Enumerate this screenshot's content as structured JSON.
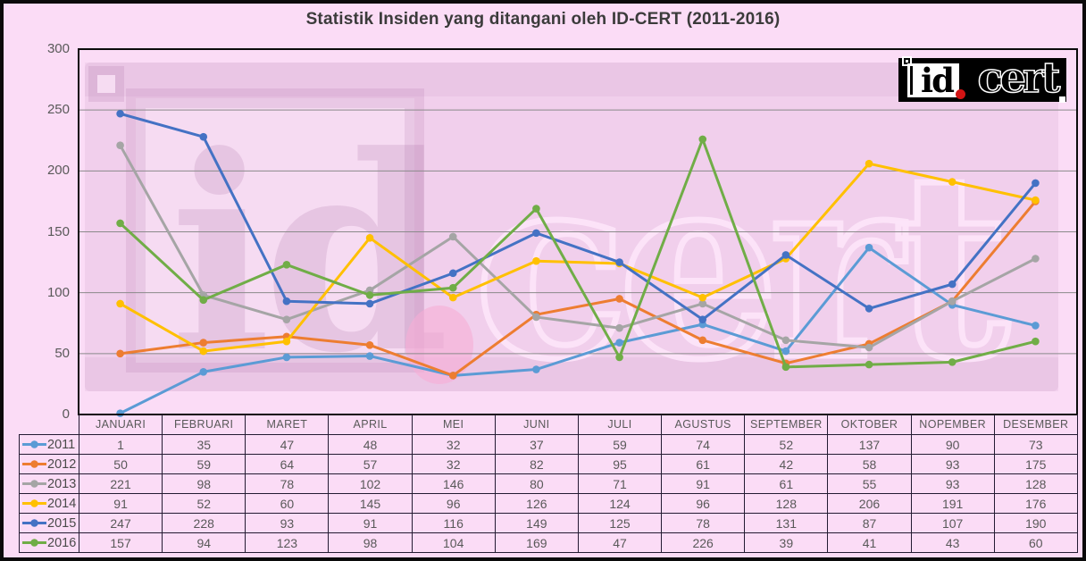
{
  "title": "Statistik Insiden yang ditangani oleh ID-CERT (2011-2016)",
  "logo": {
    "id_text": "id",
    "cert_text": "cert",
    "dot_color": "#d21414",
    "bg_color": "#000000"
  },
  "colors": {
    "page_background": "#fbdcf6",
    "gridline": "#8a8a8a",
    "plot_border": "#0b0b0b",
    "table_border": "#241b33",
    "text_gray": "#595959",
    "title_gray": "#3b3b3b",
    "watermark_dark": "rgba(158,96,152,0.13)",
    "watermark_light": "rgba(252,228,249,0.95)",
    "watermark_dot": "rgba(247,173,214,0.6)"
  },
  "chart_data": {
    "type": "line",
    "title": "Statistik Insiden yang ditangani oleh ID-CERT (2011-2016)",
    "xlabel": "",
    "ylabel": "",
    "ylim": [
      0,
      300
    ],
    "y_ticks": [
      0,
      50,
      100,
      150,
      200,
      250,
      300
    ],
    "grid": true,
    "legend_position": "table-left",
    "marker": "circle",
    "categories": [
      "JANUARI",
      "FEBRUARI",
      "MARET",
      "APRIL",
      "MEI",
      "JUNI",
      "JULI",
      "AGUSTUS",
      "SEPTEMBER",
      "OKTOBER",
      "NOPEMBER",
      "DESEMBER"
    ],
    "series": [
      {
        "name": "2011",
        "color": "#5B9BD5",
        "values": [
          1,
          35,
          47,
          48,
          32,
          37,
          59,
          74,
          52,
          137,
          90,
          73
        ]
      },
      {
        "name": "2012",
        "color": "#ED7D31",
        "values": [
          50,
          59,
          64,
          57,
          32,
          82,
          95,
          61,
          42,
          58,
          93,
          175
        ]
      },
      {
        "name": "2013",
        "color": "#A5A5A5",
        "values": [
          221,
          98,
          78,
          102,
          146,
          80,
          71,
          91,
          61,
          55,
          93,
          128
        ]
      },
      {
        "name": "2014",
        "color": "#FFC000",
        "values": [
          91,
          52,
          60,
          145,
          96,
          126,
          124,
          96,
          128,
          206,
          191,
          176
        ]
      },
      {
        "name": "2015",
        "color": "#4472C4",
        "values": [
          247,
          228,
          93,
          91,
          116,
          149,
          125,
          78,
          131,
          87,
          107,
          190
        ]
      },
      {
        "name": "2016",
        "color": "#70AD47",
        "values": [
          157,
          94,
          123,
          98,
          104,
          169,
          47,
          226,
          39,
          41,
          43,
          60
        ]
      }
    ]
  }
}
